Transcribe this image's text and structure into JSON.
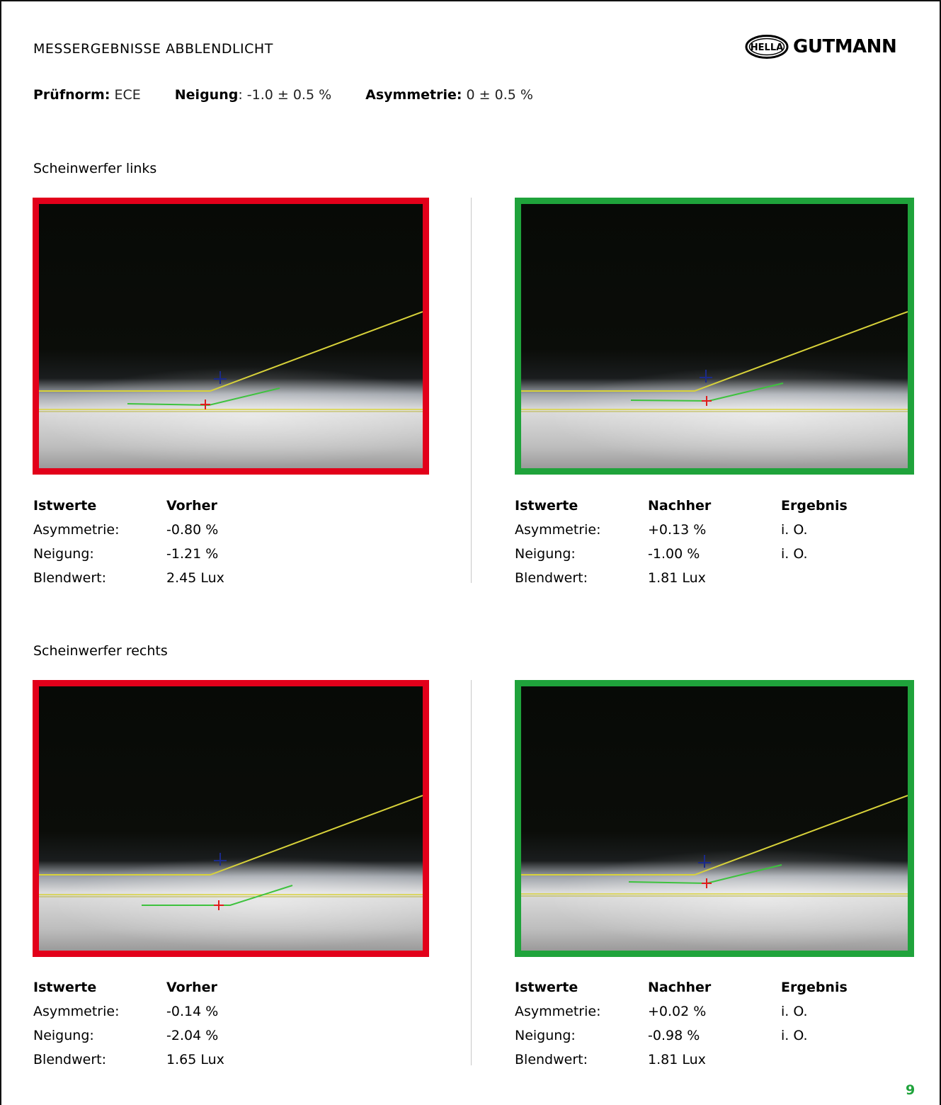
{
  "header": {
    "title": "MESSERGEBNISSE ABBLENDLICHT",
    "logo_badge": "HELLA",
    "logo_word": "GUTMANN"
  },
  "norm": {
    "pruefnorm_label": "Prüfnorm:",
    "pruefnorm_value": " ECE",
    "neigung_label": "Neigung",
    "neigung_value": ": -1.0 ± 0.5 %",
    "asym_label": "Asymmetrie:",
    "asym_value": " 0 ± 0.5 %"
  },
  "colors": {
    "fail_frame": "#e2001a",
    "pass_frame": "#1fa33b",
    "cutoff_line": "#d8d23a",
    "measured_line": "#3ec23e",
    "page_number": "#1fa33b"
  },
  "sections": [
    {
      "title": "Scheinwerfer links",
      "before": {
        "status": "fail",
        "header": [
          "Istwerte",
          "Vorher"
        ],
        "rows": [
          [
            "Asymmetrie:",
            "-0.80 %"
          ],
          [
            "Neigung:",
            "-1.21 %"
          ],
          [
            "Blendwert:",
            "2.45 Lux"
          ]
        ]
      },
      "after": {
        "status": "pass",
        "header": [
          "Istwerte",
          "Nachher",
          "Ergebnis"
        ],
        "rows": [
          [
            "Asymmetrie:",
            "+0.13 %",
            "i. O."
          ],
          [
            "Neigung:",
            "-1.00 %",
            "i. O."
          ],
          [
            "Blendwert:",
            "1.81 Lux",
            ""
          ]
        ]
      }
    },
    {
      "title": "Scheinwerfer rechts",
      "before": {
        "status": "fail",
        "header": [
          "Istwerte",
          "Vorher"
        ],
        "rows": [
          [
            "Asymmetrie:",
            "-0.14 %"
          ],
          [
            "Neigung:",
            "-2.04 %"
          ],
          [
            "Blendwert:",
            "1.65 Lux"
          ]
        ]
      },
      "after": {
        "status": "pass",
        "header": [
          "Istwerte",
          "Nachher",
          "Ergebnis"
        ],
        "rows": [
          [
            "Asymmetrie:",
            "+0.02 %",
            "i. O."
          ],
          [
            "Neigung:",
            "-0.98 %",
            "i. O."
          ],
          [
            "Blendwert:",
            "1.81 Lux",
            ""
          ]
        ]
      }
    }
  ],
  "page_number": "9"
}
